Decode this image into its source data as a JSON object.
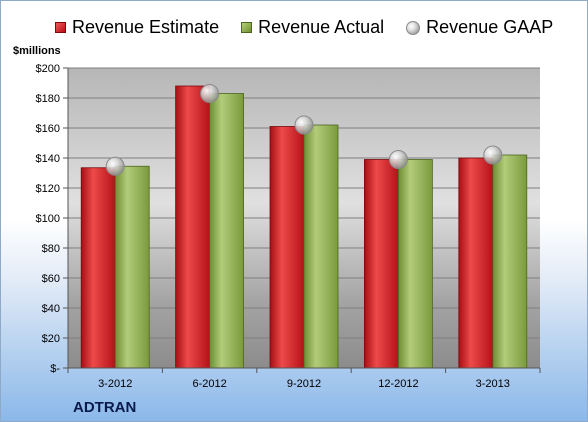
{
  "legend": {
    "estimate": "Revenue Estimate",
    "actual": "Revenue Actual",
    "gaap": "Revenue GAAP"
  },
  "units_label": "$millions",
  "company": "ADTRAN",
  "colors": {
    "estimate": "#c4161c",
    "actual": "#8cac4c",
    "gaap": "#b0b0b0"
  },
  "chart_data": {
    "type": "bar",
    "categories": [
      "3-2012",
      "6-2012",
      "9-2012",
      "12-2012",
      "3-2013"
    ],
    "series": [
      {
        "name": "Revenue Estimate",
        "values": [
          133.5,
          188,
          161,
          139,
          140
        ]
      },
      {
        "name": "Revenue Actual",
        "values": [
          134.5,
          183,
          162,
          139,
          142
        ]
      },
      {
        "name": "Revenue GAAP",
        "type": "scatter",
        "values": [
          134.5,
          183,
          162,
          139,
          142
        ]
      }
    ],
    "ylabel": "$millions",
    "ylim": [
      0,
      200
    ],
    "yticks": [
      0,
      20,
      40,
      60,
      80,
      100,
      120,
      140,
      160,
      180,
      200
    ],
    "ytick_labels": [
      "$-",
      "$20",
      "$40",
      "$60",
      "$80",
      "$100",
      "$120",
      "$140",
      "$160",
      "$180",
      "$200"
    ],
    "grid": true
  }
}
